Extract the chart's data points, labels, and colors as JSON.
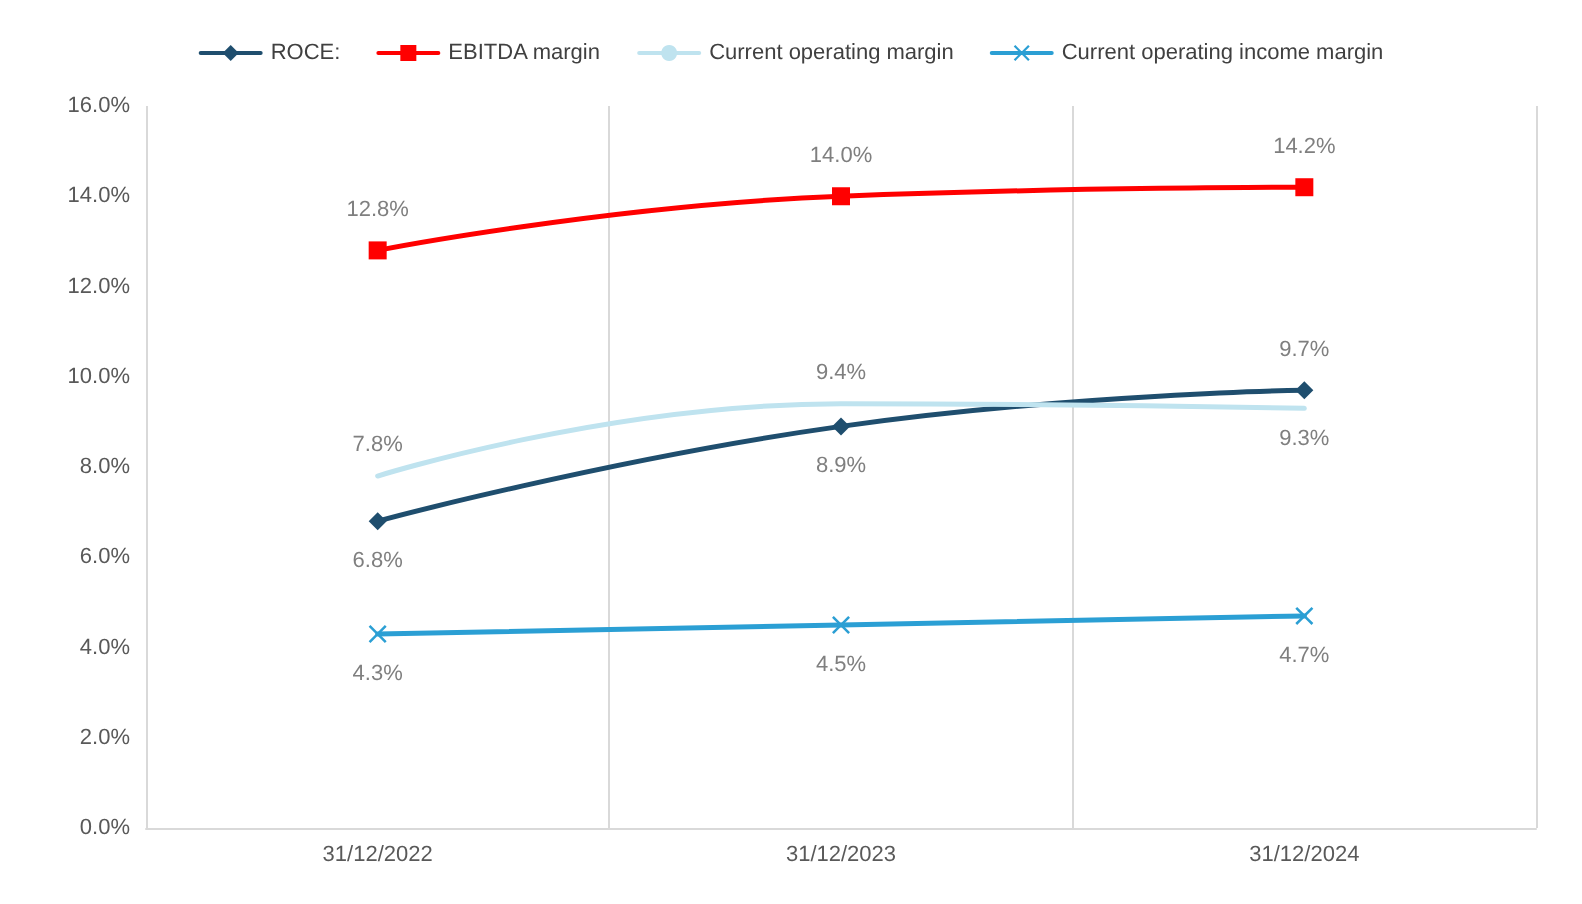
{
  "chart_data": {
    "type": "line",
    "categories": [
      "31/12/2022",
      "31/12/2023",
      "31/12/2024"
    ],
    "series": [
      {
        "name": "ROCE:",
        "color": "#1f4e6e",
        "marker": "diamond",
        "values": [
          6.8,
          8.9,
          9.7
        ],
        "value_labels": [
          "6.8%",
          "8.9%",
          "9.7%"
        ]
      },
      {
        "name": "EBITDA margin",
        "color": "#ff0000",
        "marker": "square",
        "values": [
          12.8,
          14.0,
          14.2
        ],
        "value_labels": [
          "12.8%",
          "14.0%",
          "14.2%"
        ]
      },
      {
        "name": "Current operating margin",
        "color": "#bfe3ef",
        "marker": "none",
        "values": [
          7.8,
          9.4,
          9.3
        ],
        "value_labels": [
          "7.8%",
          "9.4%",
          "9.3%"
        ]
      },
      {
        "name": "Current operating income margin",
        "color": "#2b9fd4",
        "marker": "cross",
        "values": [
          4.3,
          4.5,
          4.7
        ],
        "value_labels": [
          "4.3%",
          "4.5%",
          "4.7%"
        ]
      }
    ],
    "ylim": [
      0,
      16
    ],
    "yticks": [
      {
        "value": 0,
        "label": "0.0%"
      },
      {
        "value": 2,
        "label": "2.0%"
      },
      {
        "value": 4,
        "label": "4.0%"
      },
      {
        "value": 6,
        "label": "6.0%"
      },
      {
        "value": 8,
        "label": "8.0%"
      },
      {
        "value": 10,
        "label": "10.0%"
      },
      {
        "value": 12,
        "label": "12.0%"
      },
      {
        "value": 14,
        "label": "14.0%"
      },
      {
        "value": 16,
        "label": "16.0%"
      }
    ],
    "grid": "x",
    "legend": "top",
    "line_style": "solid"
  }
}
